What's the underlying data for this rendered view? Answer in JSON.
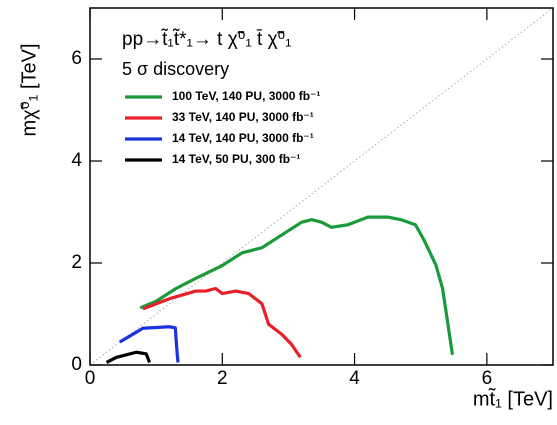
{
  "chart_data": {
    "type": "line",
    "title": "pp→t̃₁t̃*₁→ t χ̃⁰₁ t̄ χ̃⁰₁",
    "subtitle": "5 σ discovery",
    "x_label": "mt̃₁ [TeV]",
    "y_label": "mχ̃⁰₁ [TeV]",
    "xlim": [
      0,
      7
    ],
    "ylim": [
      0,
      7
    ],
    "xticks": [
      0,
      2,
      4,
      6
    ],
    "yticks": [
      0,
      2,
      4,
      6
    ],
    "diagonal": true,
    "series": [
      {
        "name": "100 TeV, 140 PU, 3000 fb⁻¹",
        "color": "#1a9a3a",
        "x": [
          0.76,
          1.0,
          1.3,
          1.6,
          2.0,
          2.3,
          2.6,
          2.9,
          3.2,
          3.35,
          3.5,
          3.65,
          3.9,
          4.2,
          4.5,
          4.7,
          4.92,
          5.05,
          5.23,
          5.33,
          5.4,
          5.48
        ],
        "values": [
          1.12,
          1.25,
          1.5,
          1.7,
          1.95,
          2.2,
          2.3,
          2.55,
          2.8,
          2.85,
          2.8,
          2.7,
          2.75,
          2.9,
          2.9,
          2.85,
          2.75,
          2.45,
          1.96,
          1.5,
          0.9,
          0.2
        ]
      },
      {
        "name": "33 TeV, 140 PU, 3000 fb⁻¹",
        "color": "#e8202a",
        "x": [
          0.8,
          1.2,
          1.6,
          1.75,
          1.9,
          2.0,
          2.2,
          2.4,
          2.6,
          2.7,
          2.9,
          3.05,
          3.18
        ],
        "values": [
          1.1,
          1.3,
          1.45,
          1.45,
          1.5,
          1.4,
          1.45,
          1.4,
          1.2,
          0.8,
          0.6,
          0.4,
          0.15
        ]
      },
      {
        "name": "14 TeV, 140 PU, 3000 fb⁻¹",
        "color": "#1a32e0",
        "x": [
          0.45,
          0.8,
          1.2,
          1.29,
          1.31,
          1.33
        ],
        "values": [
          0.45,
          0.72,
          0.75,
          0.73,
          0.35,
          0.05
        ]
      },
      {
        "name": "14 TeV, 50 PU, 300 fb⁻¹",
        "color": "#000000",
        "x": [
          0.25,
          0.4,
          0.55,
          0.7,
          0.85,
          0.9
        ],
        "values": [
          0.05,
          0.15,
          0.2,
          0.25,
          0.22,
          0.05
        ]
      }
    ]
  }
}
